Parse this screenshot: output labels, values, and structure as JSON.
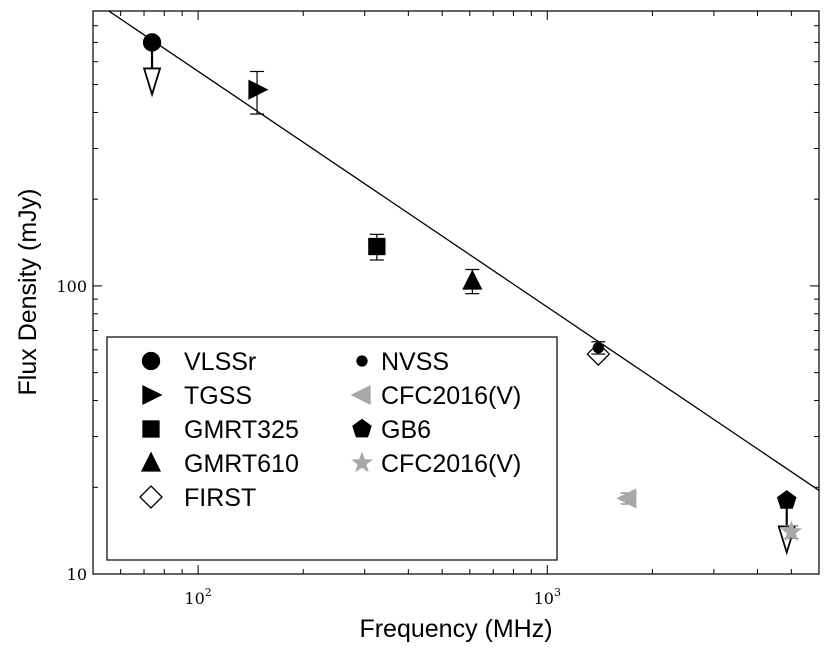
{
  "chart_data": {
    "type": "scatter",
    "title": "",
    "xlabel": "Frequency (MHz)",
    "ylabel": "Flux Density (mJy)",
    "xscale": "log",
    "yscale": "log",
    "xlim": [
      50,
      6000
    ],
    "ylim": [
      10,
      900
    ],
    "x_tick_labels": [
      {
        "value": 100,
        "base": "10",
        "exp": "2"
      },
      {
        "value": 1000,
        "base": "10",
        "exp": "3"
      }
    ],
    "y_tick_labels": [
      {
        "value": 10,
        "label": "10"
      },
      {
        "value": 100,
        "label": "100"
      }
    ],
    "fit_line": {
      "x": [
        50,
        6000
      ],
      "y": [
        980,
        19.5
      ]
    },
    "legend_position": "lower-left",
    "series": [
      {
        "name": "VLSSr",
        "marker": "circle",
        "color": "#000000",
        "filled": true,
        "points": [
          {
            "x": 73.8,
            "y": 700,
            "upper_limit": true
          }
        ]
      },
      {
        "name": "TGSS",
        "marker": "triangle-right",
        "color": "#000000",
        "filled": true,
        "points": [
          {
            "x": 147.5,
            "y": 480,
            "yerr_low": 85,
            "yerr_high": 75
          }
        ]
      },
      {
        "name": "GMRT325",
        "marker": "square",
        "color": "#000000",
        "filled": true,
        "points": [
          {
            "x": 325,
            "y": 137,
            "yerr_low": 14,
            "yerr_high": 14
          }
        ]
      },
      {
        "name": "GMRT610",
        "marker": "triangle-up",
        "color": "#000000",
        "filled": true,
        "points": [
          {
            "x": 610,
            "y": 104,
            "yerr_low": 10,
            "yerr_high": 10
          }
        ]
      },
      {
        "name": "FIRST",
        "marker": "diamond",
        "color": "#000000",
        "filled": false,
        "points": [
          {
            "x": 1400,
            "y": 58
          }
        ]
      },
      {
        "name": "NVSS",
        "marker": "small-circle",
        "color": "#000000",
        "filled": true,
        "points": [
          {
            "x": 1400,
            "y": 61,
            "yerr_low": 3,
            "yerr_high": 3
          }
        ]
      },
      {
        "name": "CFC2016(V)",
        "marker": "triangle-left",
        "color": "#a8a8a8",
        "filled": true,
        "points": [
          {
            "x": 1700,
            "y": 18.3,
            "yerr_low": 0.8,
            "yerr_high": 0.8
          }
        ]
      },
      {
        "name": "GB6",
        "marker": "pentagon",
        "color": "#000000",
        "filled": true,
        "points": [
          {
            "x": 4850,
            "y": 18,
            "upper_limit": true
          }
        ]
      },
      {
        "name": "CFC2016(V)",
        "marker": "star",
        "color": "#a8a8a8",
        "filled": true,
        "points": [
          {
            "x": 5000,
            "y": 14,
            "yerr_low": 0.7,
            "yerr_high": 0.7
          }
        ]
      }
    ]
  }
}
